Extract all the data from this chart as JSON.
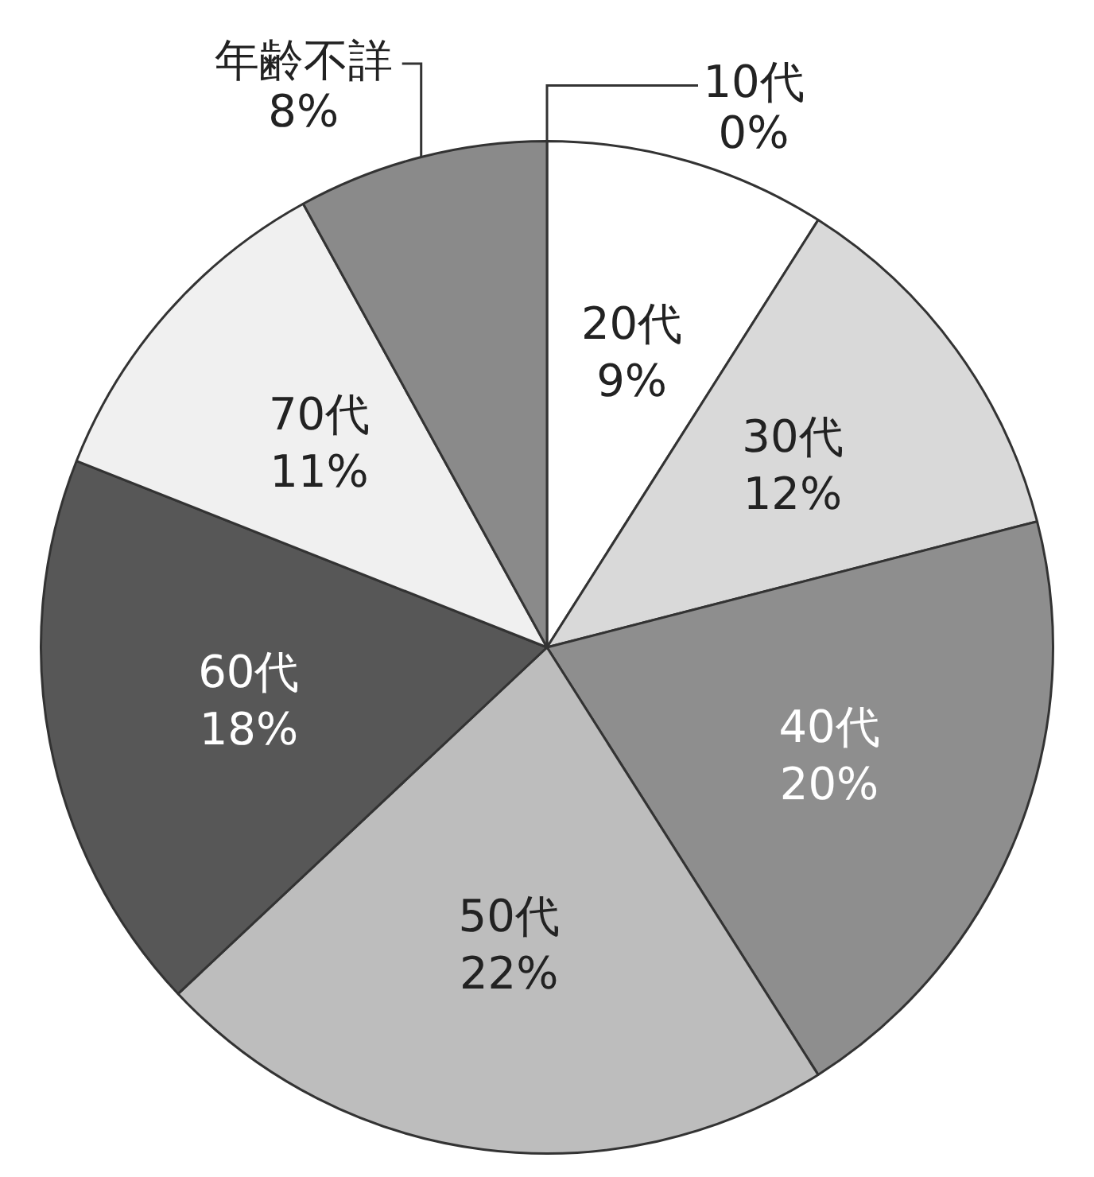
{
  "chart_data": {
    "type": "pie",
    "categories": [
      "10代",
      "20代",
      "30代",
      "40代",
      "50代",
      "60代",
      "70代",
      "年齢不詳"
    ],
    "values": [
      0,
      9,
      12,
      20,
      22,
      18,
      11,
      8
    ],
    "colors": [
      "#ffffff",
      "#ffffff",
      "#d9d9d9",
      "#8e8e8e",
      "#bdbdbd",
      "#575757",
      "#f0f0f0",
      "#8a8a8a"
    ],
    "value_labels": [
      "0%",
      "9%",
      "12%",
      "20%",
      "22%",
      "18%",
      "11%",
      "8%"
    ],
    "legend": false
  }
}
